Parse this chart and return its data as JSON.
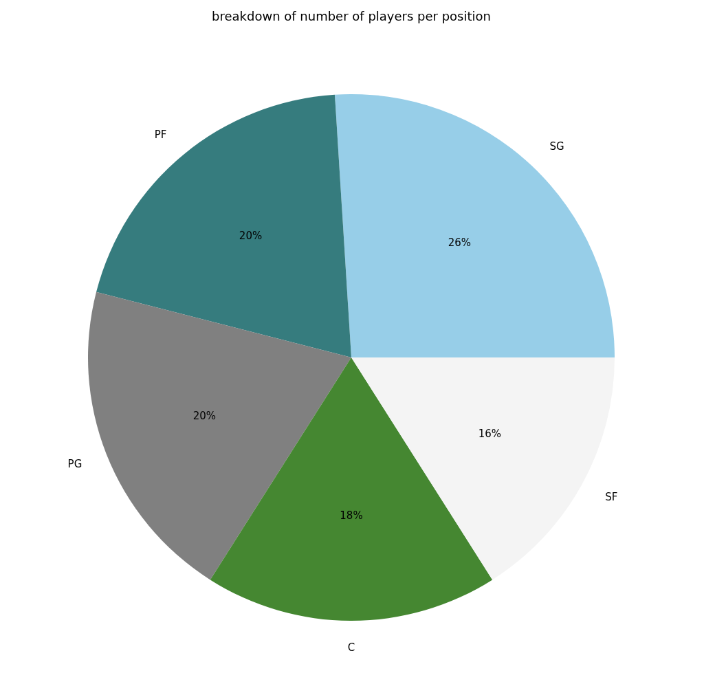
{
  "chart_data": {
    "type": "pie",
    "title": "breakdown of number of players per position",
    "categories": [
      "SG",
      "PF",
      "PG",
      "C",
      "SF"
    ],
    "values": [
      26,
      20,
      20,
      18,
      16
    ],
    "value_labels": [
      "26%",
      "20%",
      "20%",
      "18%",
      "16%"
    ],
    "colors": [
      "#97cee8",
      "#367c7e",
      "#808080",
      "#458731",
      "#f4f4f4"
    ]
  }
}
